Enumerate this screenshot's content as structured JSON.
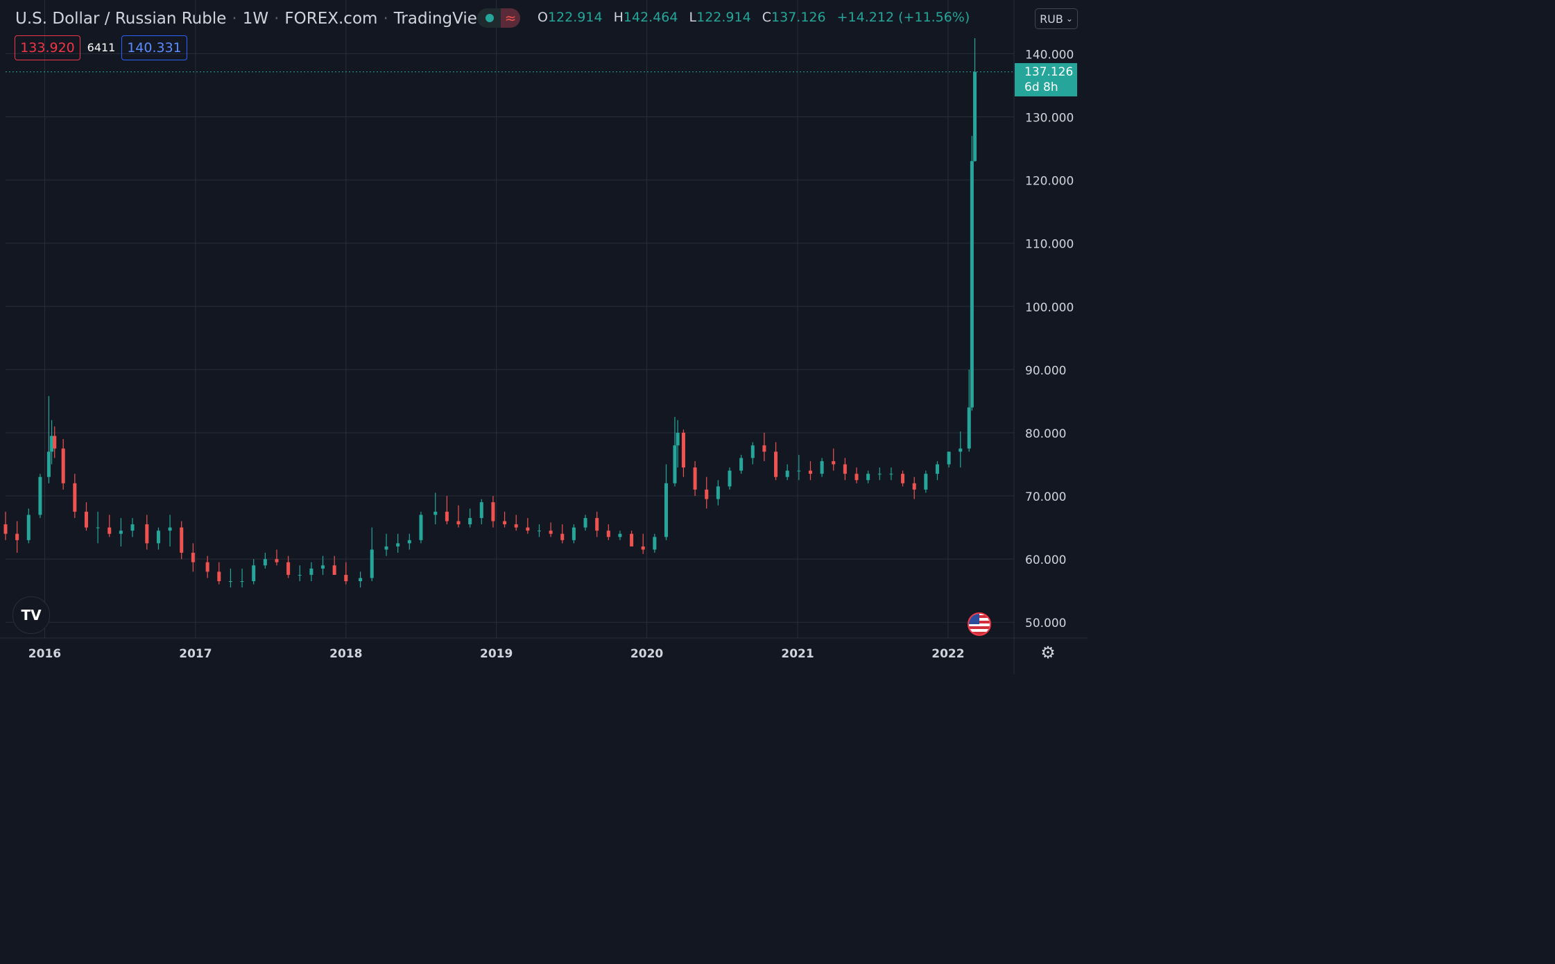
{
  "header": {
    "symbol": "U.S. Dollar / Russian Ruble",
    "interval": "1W",
    "exchange": "FOREX.com",
    "source": "TradingView"
  },
  "ohlc": {
    "o_label": "O",
    "o": "122.914",
    "h_label": "H",
    "h": "142.464",
    "l_label": "L",
    "l": "122.914",
    "c_label": "C",
    "c": "137.126",
    "change": "+14.212 (+11.56%)"
  },
  "quote": {
    "bid": "133.920",
    "spread": "6411",
    "ask": "140.331"
  },
  "currency_button": "RUB",
  "last_price": {
    "value": "137.126",
    "countdown": "6d 8h"
  },
  "colors": {
    "up": "#26a69a",
    "down": "#ef5350",
    "background": "#131722",
    "grid": "#2a2e39"
  },
  "icons": [
    "tradingview-logo-icon",
    "us-flag-icon",
    "gear-icon",
    "chevron-down-icon"
  ],
  "chart_data": {
    "type": "candlestick",
    "title": "U.S. Dollar / Russian Ruble",
    "y_axis_side": "right",
    "ylim": [
      47.5,
      148.5
    ],
    "y_ticks": [
      50,
      60,
      70,
      80,
      90,
      100,
      110,
      120,
      130,
      140
    ],
    "y_tick_labels": [
      "50.000",
      "60.000",
      "70.000",
      "80.000",
      "90.000",
      "100.000",
      "110.000",
      "120.000",
      "130.000",
      "140.000"
    ],
    "x_ticks": [
      "2016",
      "2017",
      "2018",
      "2019",
      "2020",
      "2021",
      "2022"
    ],
    "xlim": [
      "2015-09-28",
      "2022-06-10"
    ],
    "grid": true,
    "last_value": 137.126,
    "series": [
      {
        "x": [
          "2015-09-28",
          "2015-10-26",
          "2015-11-23",
          "2015-12-21",
          "2016-01-11",
          "2016-01-18",
          "2016-01-25",
          "2016-02-15",
          "2016-03-14",
          "2016-04-11",
          "2016-05-09",
          "2016-06-06",
          "2016-07-04",
          "2016-08-01",
          "2016-09-05",
          "2016-10-03",
          "2016-10-31",
          "2016-11-28",
          "2016-12-26",
          "2017-01-30",
          "2017-02-27",
          "2017-03-27",
          "2017-04-24",
          "2017-05-22",
          "2017-06-19",
          "2017-07-17",
          "2017-08-14",
          "2017-09-11",
          "2017-10-09",
          "2017-11-06",
          "2017-12-04",
          "2018-01-01",
          "2018-02-05",
          "2018-03-05",
          "2018-04-09",
          "2018-05-07",
          "2018-06-04",
          "2018-07-02",
          "2018-08-06",
          "2018-09-03",
          "2018-10-01",
          "2018-10-29",
          "2018-11-26",
          "2018-12-24",
          "2019-01-21",
          "2019-02-18",
          "2019-03-18",
          "2019-04-15",
          "2019-05-13",
          "2019-06-10",
          "2019-07-08",
          "2019-08-05",
          "2019-09-02",
          "2019-09-30",
          "2019-10-28",
          "2019-11-25",
          "2019-12-23",
          "2020-01-20",
          "2020-02-17",
          "2020-03-09",
          "2020-03-16",
          "2020-03-30",
          "2020-04-27",
          "2020-05-25",
          "2020-06-22",
          "2020-07-20",
          "2020-08-17",
          "2020-09-14",
          "2020-10-12",
          "2020-11-09",
          "2020-12-07",
          "2021-01-04",
          "2021-02-01",
          "2021-03-01",
          "2021-03-29",
          "2021-04-26",
          "2021-05-24",
          "2021-06-21",
          "2021-07-19",
          "2021-08-16",
          "2021-09-13",
          "2021-10-11",
          "2021-11-08",
          "2021-12-06",
          "2022-01-03",
          "2022-01-31",
          "2022-02-21",
          "2022-02-28",
          "2022-03-07"
        ],
        "open": [
          65.5,
          64.0,
          63.0,
          67.0,
          73.0,
          77.0,
          79.5,
          77.5,
          72.0,
          67.5,
          65.0,
          65.0,
          64.0,
          64.5,
          65.5,
          62.5,
          64.5,
          65.0,
          61.0,
          59.5,
          58.0,
          56.5,
          56.5,
          56.5,
          59.0,
          60.0,
          59.5,
          57.5,
          57.5,
          58.5,
          59.0,
          57.5,
          56.5,
          57.0,
          61.5,
          62.0,
          62.5,
          63.0,
          67.0,
          67.5,
          66.0,
          65.5,
          66.5,
          69.0,
          66.0,
          65.5,
          65.0,
          64.5,
          64.5,
          64.0,
          63.0,
          65.0,
          66.5,
          64.5,
          63.5,
          64.0,
          62.0,
          61.5,
          63.5,
          72.0,
          78.0,
          80.0,
          74.5,
          71.0,
          69.5,
          71.5,
          74.0,
          76.0,
          78.0,
          77.0,
          73.0,
          74.0,
          74.0,
          73.5,
          75.5,
          75.0,
          73.5,
          72.5,
          73.5,
          73.5,
          73.5,
          72.0,
          71.0,
          73.5,
          75.0,
          77.0,
          77.5,
          84.0,
          123.0
        ],
        "high": [
          67.5,
          66.0,
          68.0,
          73.5,
          85.8,
          82.0,
          81.0,
          79.0,
          73.5,
          69.0,
          67.5,
          67.0,
          66.5,
          66.5,
          67.0,
          65.0,
          67.0,
          66.0,
          62.5,
          60.5,
          59.5,
          58.5,
          58.5,
          60.0,
          61.0,
          61.5,
          60.5,
          59.0,
          59.5,
          60.5,
          60.5,
          59.5,
          58.0,
          65.0,
          64.0,
          64.0,
          64.0,
          67.5,
          70.5,
          70.0,
          68.5,
          68.0,
          69.5,
          70.0,
          67.5,
          67.0,
          66.5,
          65.5,
          65.8,
          65.5,
          65.5,
          67.0,
          67.5,
          65.5,
          64.5,
          64.5,
          64.0,
          64.0,
          75.0,
          82.5,
          82.0,
          80.5,
          75.5,
          73.0,
          72.5,
          74.5,
          76.5,
          78.5,
          80.0,
          78.5,
          75.0,
          76.5,
          75.5,
          76.0,
          77.5,
          76.0,
          74.5,
          74.0,
          74.5,
          74.5,
          74.0,
          73.0,
          74.0,
          75.5,
          77.0,
          80.2,
          90.0,
          127.0,
          142.464
        ],
        "low": [
          63.0,
          61.0,
          62.5,
          66.5,
          72.0,
          75.0,
          76.0,
          71.0,
          66.5,
          64.5,
          62.5,
          63.5,
          62.0,
          63.5,
          61.5,
          61.5,
          62.0,
          60.0,
          58.0,
          57.0,
          56.0,
          55.5,
          55.5,
          56.0,
          58.5,
          59.0,
          57.0,
          56.5,
          56.5,
          57.5,
          57.5,
          56.0,
          55.5,
          56.5,
          60.5,
          61.0,
          61.5,
          62.5,
          65.5,
          65.5,
          65.0,
          65.0,
          65.5,
          65.0,
          65.0,
          64.5,
          64.0,
          63.5,
          63.5,
          62.5,
          62.5,
          64.5,
          63.5,
          63.0,
          63.0,
          62.5,
          60.8,
          61.0,
          63.0,
          71.5,
          74.5,
          73.0,
          70.0,
          68.0,
          68.5,
          71.0,
          73.5,
          75.0,
          75.5,
          72.5,
          72.5,
          72.5,
          72.5,
          73.0,
          74.0,
          72.5,
          72.0,
          72.0,
          72.5,
          72.5,
          71.5,
          69.5,
          70.5,
          72.5,
          74.5,
          74.5,
          77.0,
          83.5,
          122.914
        ],
        "close": [
          64.0,
          63.0,
          67.0,
          73.0,
          77.0,
          79.5,
          77.5,
          72.0,
          67.5,
          65.0,
          65.0,
          64.0,
          64.5,
          65.5,
          62.5,
          64.5,
          65.0,
          61.0,
          59.5,
          58.0,
          56.5,
          56.5,
          56.5,
          59.0,
          60.0,
          59.5,
          57.5,
          57.5,
          58.5,
          59.0,
          57.5,
          56.5,
          57.0,
          61.5,
          62.0,
          62.5,
          63.0,
          67.0,
          67.5,
          66.0,
          65.5,
          66.5,
          69.0,
          66.0,
          65.5,
          65.0,
          64.5,
          64.5,
          64.0,
          63.0,
          65.0,
          66.5,
          64.5,
          63.5,
          64.0,
          62.0,
          61.5,
          63.5,
          72.0,
          78.0,
          80.0,
          74.5,
          71.0,
          69.5,
          71.5,
          74.0,
          76.0,
          78.0,
          77.0,
          73.0,
          74.0,
          74.0,
          73.5,
          75.5,
          75.0,
          73.5,
          72.5,
          73.5,
          73.5,
          73.5,
          72.0,
          71.0,
          73.5,
          75.0,
          77.0,
          77.5,
          84.0,
          123.0,
          137.126
        ]
      }
    ]
  }
}
